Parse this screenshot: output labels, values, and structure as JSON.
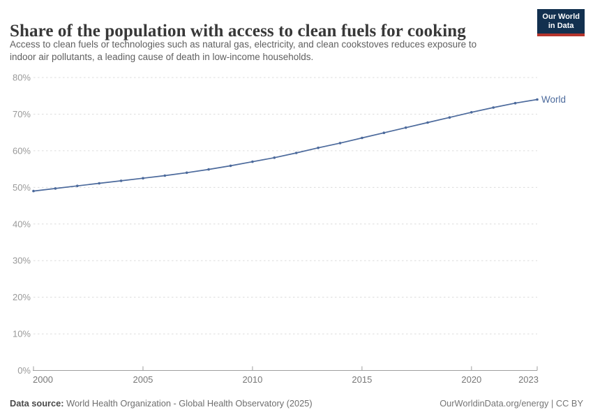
{
  "header": {
    "title": "Share of the population with access to clean fuels for cooking",
    "subtitle_line1": "Access to clean fuels or technologies such as natural gas, electricity, and clean cookstoves reduces exposure to",
    "subtitle_line2": "indoor air pollutants, a leading cause of death in low-income households.",
    "logo": {
      "line1": "Our World",
      "line2": "in Data"
    }
  },
  "chart_data": {
    "type": "line",
    "title": "Share of the population with access to clean fuels for cooking",
    "xlabel": "",
    "ylabel": "",
    "x": [
      2000,
      2001,
      2002,
      2003,
      2004,
      2005,
      2006,
      2007,
      2008,
      2009,
      2010,
      2011,
      2012,
      2013,
      2014,
      2015,
      2016,
      2017,
      2018,
      2019,
      2020,
      2021,
      2022,
      2023
    ],
    "series": [
      {
        "name": "World",
        "color": "#4c6a9c",
        "values": [
          49.0,
          49.7,
          50.4,
          51.1,
          51.8,
          52.5,
          53.2,
          54.0,
          54.9,
          55.9,
          57.0,
          58.1,
          59.4,
          60.8,
          62.1,
          63.5,
          64.9,
          66.3,
          67.7,
          69.1,
          70.5,
          71.8,
          73.0,
          74.0
        ]
      }
    ],
    "ylim": [
      0,
      80
    ],
    "y_ticks": [
      0,
      10,
      20,
      30,
      40,
      50,
      60,
      70,
      80
    ],
    "y_tick_suffix": "%",
    "x_ticks": [
      2000,
      2005,
      2010,
      2015,
      2020,
      2023
    ],
    "grid": "horizontal-dashed",
    "legend_position": "end-of-line"
  },
  "footer": {
    "source_label": "Data source:",
    "source_text": "World Health Organization - Global Health Observatory (2025)",
    "link_text": "OurWorldinData.org/energy | CC BY"
  },
  "colors": {
    "line": "#4c6a9c",
    "title": "#383838",
    "subtitle": "#5f5f5f",
    "grid": "#dcdcdc",
    "axis": "#9e9e9e",
    "y_tick_label": "#999999",
    "x_tick_label": "#777777",
    "footer_text": "#6e6e6e",
    "logo_bg": "#12304f",
    "logo_stripe": "#b5342c"
  }
}
